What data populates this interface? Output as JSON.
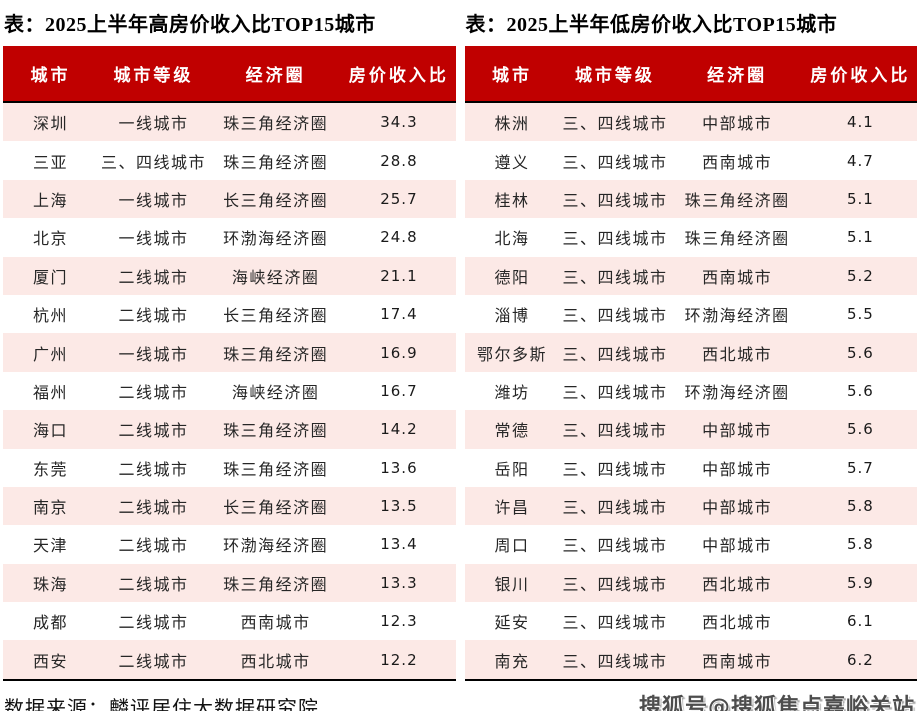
{
  "colors": {
    "header_bg": "#C00000",
    "header_text": "#FFFFFF",
    "row_alt_bg": "#FCE9E6",
    "title_text": "#000000",
    "body_text": "#262626",
    "table_border": "#000000"
  },
  "footer": {
    "source": "数据来源：麟评居住大数据研究院",
    "watermark": "搜狐号@搜狐焦点嘉峪关站"
  },
  "chart_data": [
    {
      "type": "table",
      "title": "表：2025上半年高房价收入比TOP15城市",
      "columns": [
        "城市",
        "城市等级",
        "经济圈",
        "房价收入比"
      ],
      "rows": [
        [
          "深圳",
          "一线城市",
          "珠三角经济圈",
          34.3
        ],
        [
          "三亚",
          "三、四线城市",
          "珠三角经济圈",
          28.8
        ],
        [
          "上海",
          "一线城市",
          "长三角经济圈",
          25.7
        ],
        [
          "北京",
          "一线城市",
          "环渤海经济圈",
          24.8
        ],
        [
          "厦门",
          "二线城市",
          "海峡经济圈",
          21.1
        ],
        [
          "杭州",
          "二线城市",
          "长三角经济圈",
          17.4
        ],
        [
          "广州",
          "一线城市",
          "珠三角经济圈",
          16.9
        ],
        [
          "福州",
          "二线城市",
          "海峡经济圈",
          16.7
        ],
        [
          "海口",
          "二线城市",
          "珠三角经济圈",
          14.2
        ],
        [
          "东莞",
          "二线城市",
          "珠三角经济圈",
          13.6
        ],
        [
          "南京",
          "二线城市",
          "长三角经济圈",
          13.5
        ],
        [
          "天津",
          "二线城市",
          "环渤海经济圈",
          13.4
        ],
        [
          "珠海",
          "二线城市",
          "珠三角经济圈",
          13.3
        ],
        [
          "成都",
          "二线城市",
          "西南城市",
          12.3
        ],
        [
          "西安",
          "二线城市",
          "西北城市",
          12.2
        ]
      ]
    },
    {
      "type": "table",
      "title": "表：2025上半年低房价收入比TOP15城市",
      "columns": [
        "城市",
        "城市等级",
        "经济圈",
        "房价收入比"
      ],
      "rows": [
        [
          "株洲",
          "三、四线城市",
          "中部城市",
          4.1
        ],
        [
          "遵义",
          "三、四线城市",
          "西南城市",
          4.7
        ],
        [
          "桂林",
          "三、四线城市",
          "珠三角经济圈",
          5.1
        ],
        [
          "北海",
          "三、四线城市",
          "珠三角经济圈",
          5.1
        ],
        [
          "德阳",
          "三、四线城市",
          "西南城市",
          5.2
        ],
        [
          "淄博",
          "三、四线城市",
          "环渤海经济圈",
          5.5
        ],
        [
          "鄂尔多斯",
          "三、四线城市",
          "西北城市",
          5.6
        ],
        [
          "潍坊",
          "三、四线城市",
          "环渤海经济圈",
          5.6
        ],
        [
          "常德",
          "三、四线城市",
          "中部城市",
          5.6
        ],
        [
          "岳阳",
          "三、四线城市",
          "中部城市",
          5.7
        ],
        [
          "许昌",
          "三、四线城市",
          "中部城市",
          5.8
        ],
        [
          "周口",
          "三、四线城市",
          "中部城市",
          5.8
        ],
        [
          "银川",
          "三、四线城市",
          "西北城市",
          5.9
        ],
        [
          "延安",
          "三、四线城市",
          "西北城市",
          6.1
        ],
        [
          "南充",
          "三、四线城市",
          "西南城市",
          6.2
        ]
      ]
    }
  ]
}
